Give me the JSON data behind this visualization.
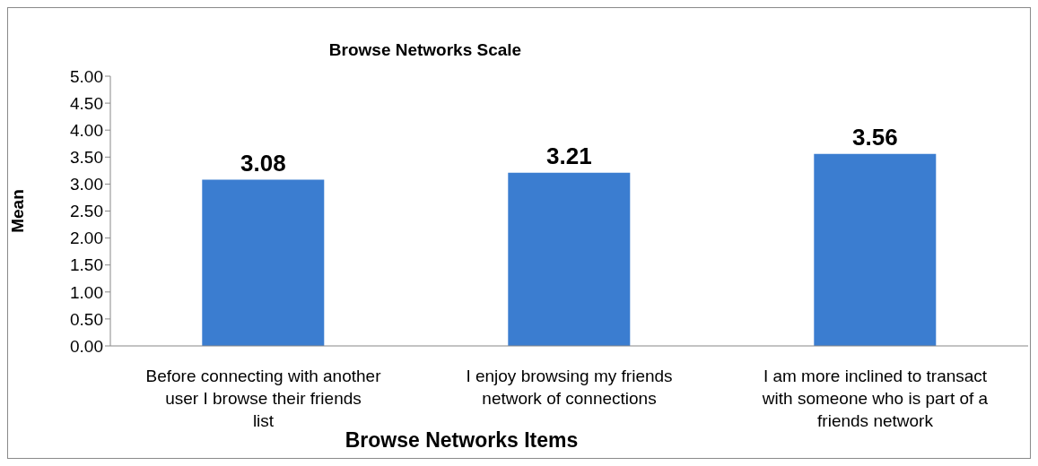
{
  "chart_data": {
    "type": "bar",
    "title": "Browse Networks Scale",
    "xlabel": "Browse Networks Items",
    "ylabel": "Mean",
    "categories": [
      "Before connecting with another user I browse their friends list",
      "I enjoy browsing my friends network of connections",
      "I am more inclined to transact with someone who is part of a friends network"
    ],
    "values": [
      3.08,
      3.21,
      3.56
    ],
    "color": "#3b7dd0",
    "ylim": [
      0,
      5
    ],
    "yticks": [
      {
        "value": 0,
        "label": "0.00"
      },
      {
        "value": 0.5,
        "label": "0.50"
      },
      {
        "value": 1,
        "label": "1.00"
      },
      {
        "value": 1.5,
        "label": "1.50"
      },
      {
        "value": 2,
        "label": "2.00"
      },
      {
        "value": 2.5,
        "label": "2.50"
      },
      {
        "value": 3,
        "label": "3.00"
      },
      {
        "value": 3.5,
        "label": "3.50"
      },
      {
        "value": 4,
        "label": "4.00"
      },
      {
        "value": 4.5,
        "label": "4.50"
      },
      {
        "value": 5,
        "label": "5.00"
      }
    ],
    "data_labels": true,
    "grid": false
  }
}
